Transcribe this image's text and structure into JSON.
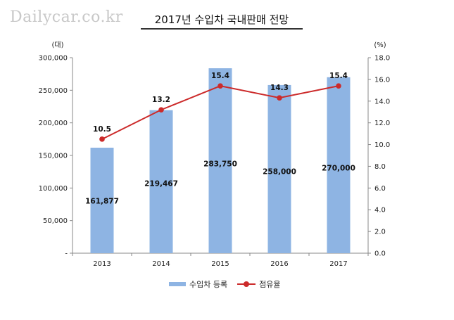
{
  "watermark": "Dailycar.co.kr",
  "chart_data": {
    "type": "bar",
    "title": "2017년 수입차 국내판매 전망",
    "categories": [
      "2013",
      "2014",
      "2015",
      "2016",
      "2017"
    ],
    "y_left": {
      "unit": "(대)",
      "range": [
        0,
        300000
      ],
      "ticks": [
        "-",
        "50,000",
        "100,000",
        "150,000",
        "200,000",
        "250,000",
        "300,000"
      ]
    },
    "y_right": {
      "unit": "(%)",
      "range": [
        0,
        18
      ],
      "ticks": [
        "0.0",
        "2.0",
        "4.0",
        "6.0",
        "8.0",
        "10.0",
        "12.0",
        "14.0",
        "16.0",
        "18.0"
      ]
    },
    "series": [
      {
        "name": "수입차 등록",
        "kind": "bar",
        "axis": "left",
        "color": "#8eb4e3",
        "values": [
          161877,
          219467,
          283750,
          258000,
          270000
        ],
        "labels": [
          "161,877",
          "219,467",
          "283,750",
          "258,000",
          "270,000"
        ]
      },
      {
        "name": "점유율",
        "kind": "line",
        "axis": "right",
        "color": "#cc2a2a",
        "values": [
          10.5,
          13.2,
          15.4,
          14.3,
          15.4
        ],
        "labels": [
          "10.5",
          "13.2",
          "15.4",
          "14.3",
          "15.4"
        ]
      }
    ],
    "legend_position": "bottom",
    "grid": false
  }
}
